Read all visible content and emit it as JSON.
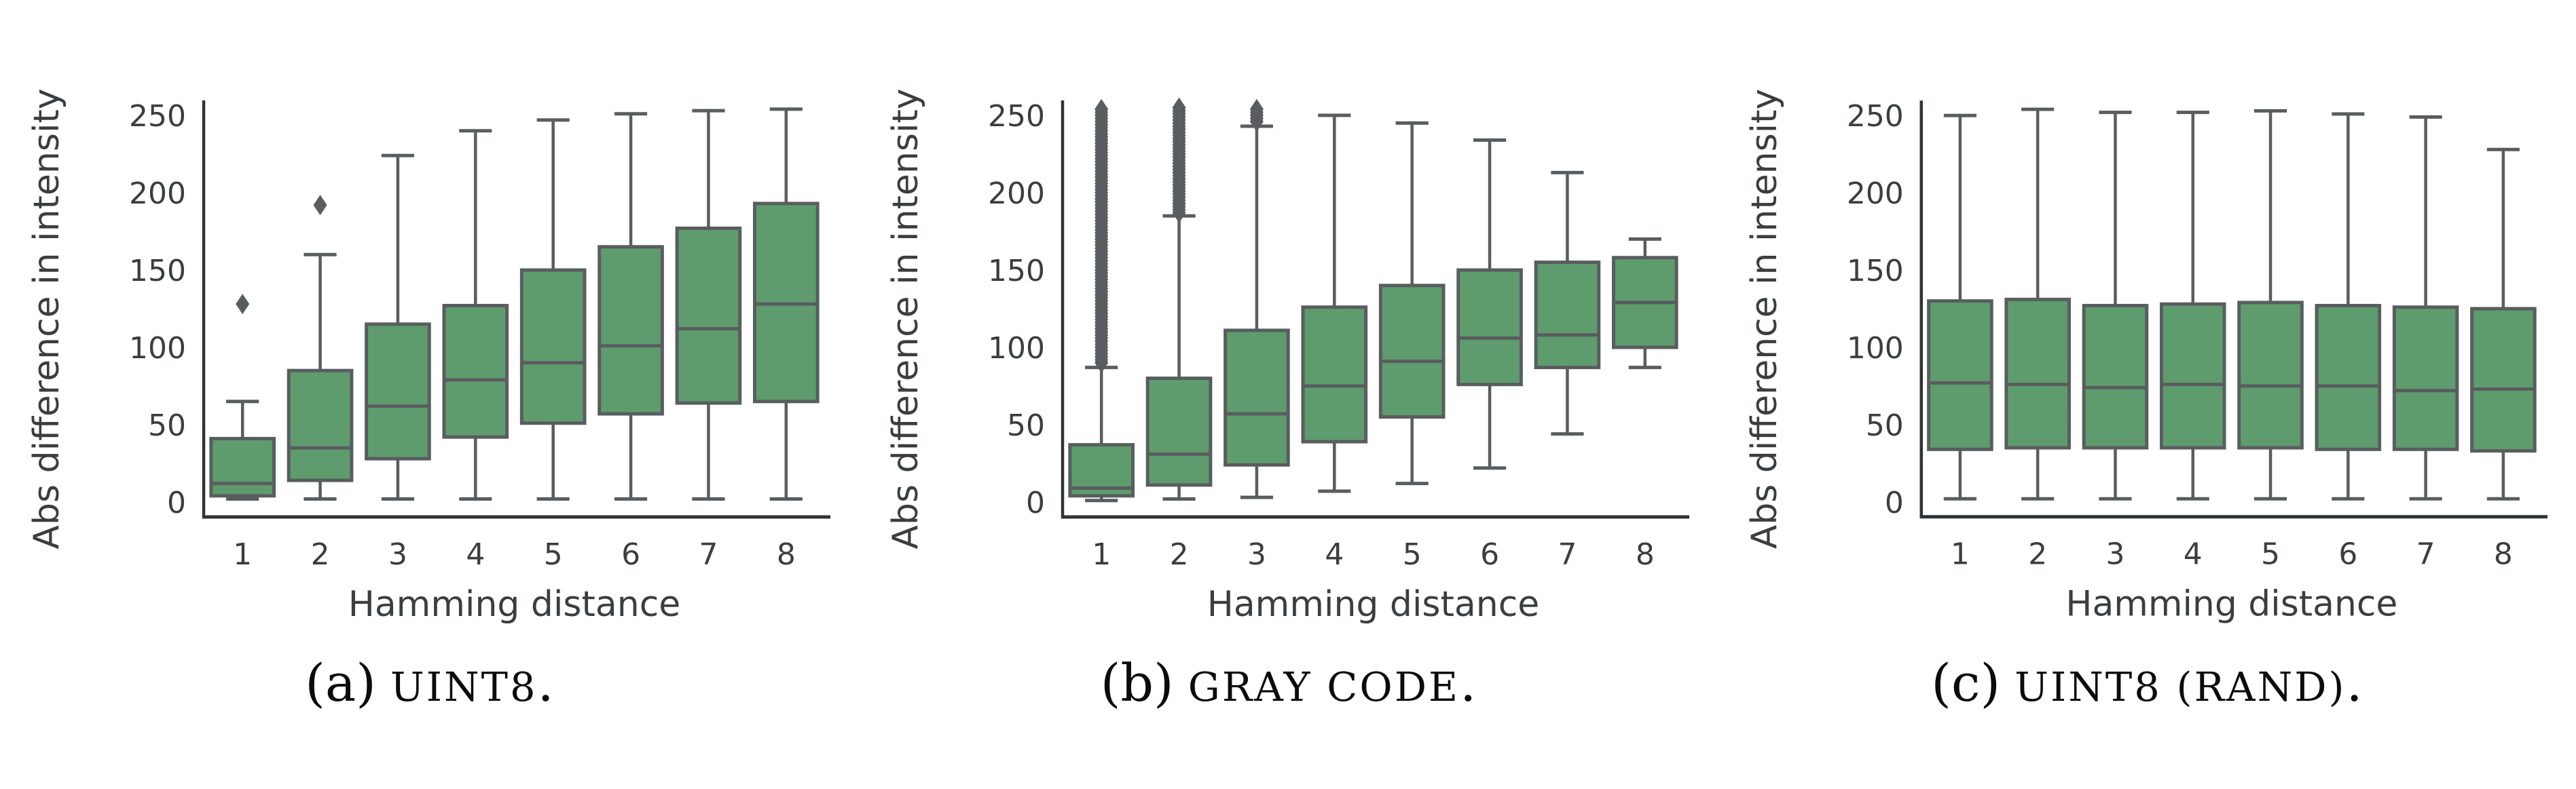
{
  "figure": {
    "background": "#ffffff",
    "box_fill": "#5e9c6e",
    "box_edge_color": "#595d5f",
    "spine_color": "#2f3335",
    "text_color": "#3a3e40",
    "caption_color": "#0b0b0b"
  },
  "chart_data": [
    {
      "id": "a",
      "type": "box",
      "caption": {
        "index": "(a)",
        "name": "UINT8",
        "suffix": "."
      },
      "xlabel": "Hamming distance",
      "ylabel": "Abs difference in intensity",
      "categories": [
        "1",
        "2",
        "3",
        "4",
        "5",
        "6",
        "7",
        "8"
      ],
      "yticks": [
        0,
        50,
        100,
        150,
        200,
        250
      ],
      "ylim": [
        0,
        260
      ],
      "grid": false,
      "legend": false,
      "boxes": [
        {
          "whislo": 2,
          "q1": 4,
          "med": 12,
          "q3": 41,
          "whishi": 65,
          "fliers": [
            128
          ]
        },
        {
          "whislo": 2,
          "q1": 14,
          "med": 35,
          "q3": 85,
          "whishi": 160,
          "fliers": [
            192
          ]
        },
        {
          "whislo": 2,
          "q1": 28,
          "med": 62,
          "q3": 115,
          "whishi": 224,
          "fliers": []
        },
        {
          "whislo": 2,
          "q1": 42,
          "med": 79,
          "q3": 127,
          "whishi": 240,
          "fliers": []
        },
        {
          "whislo": 2,
          "q1": 51,
          "med": 90,
          "q3": 150,
          "whishi": 247,
          "fliers": []
        },
        {
          "whislo": 2,
          "q1": 57,
          "med": 101,
          "q3": 165,
          "whishi": 251,
          "fliers": []
        },
        {
          "whislo": 2,
          "q1": 64,
          "med": 112,
          "q3": 177,
          "whishi": 253,
          "fliers": []
        },
        {
          "whislo": 2,
          "q1": 65,
          "med": 128,
          "q3": 193,
          "whishi": 254,
          "fliers": []
        }
      ]
    },
    {
      "id": "b",
      "type": "box",
      "caption": {
        "index": "(b)",
        "name": "GRAY CODE",
        "suffix": "."
      },
      "xlabel": "Hamming distance",
      "ylabel": "Abs difference in intensity",
      "categories": [
        "1",
        "2",
        "3",
        "4",
        "5",
        "6",
        "7",
        "8"
      ],
      "yticks": [
        0,
        50,
        100,
        150,
        200,
        250
      ],
      "ylim": [
        0,
        260
      ],
      "grid": false,
      "legend": false,
      "boxes": [
        {
          "whislo": 1,
          "q1": 4,
          "med": 9,
          "q3": 37,
          "whishi": 87,
          "fliers": [],
          "flier_range": [
            90,
            255
          ]
        },
        {
          "whislo": 2,
          "q1": 11,
          "med": 31,
          "q3": 80,
          "whishi": 185,
          "fliers": [],
          "flier_range": [
            187,
            255
          ]
        },
        {
          "whislo": 3,
          "q1": 24,
          "med": 57,
          "q3": 111,
          "whishi": 243,
          "fliers": [],
          "flier_range": [
            246,
            255
          ]
        },
        {
          "whislo": 7,
          "q1": 39,
          "med": 75,
          "q3": 126,
          "whishi": 250,
          "fliers": []
        },
        {
          "whislo": 12,
          "q1": 55,
          "med": 91,
          "q3": 140,
          "whishi": 245,
          "fliers": []
        },
        {
          "whislo": 22,
          "q1": 76,
          "med": 106,
          "q3": 150,
          "whishi": 234,
          "fliers": []
        },
        {
          "whislo": 44,
          "q1": 87,
          "med": 108,
          "q3": 155,
          "whishi": 213,
          "fliers": []
        },
        {
          "whislo": 87,
          "q1": 100,
          "med": 129,
          "q3": 158,
          "whishi": 170,
          "fliers": []
        }
      ]
    },
    {
      "id": "c",
      "type": "box",
      "caption": {
        "index": "(c)",
        "name": "UINT8 (RAND)",
        "suffix": "."
      },
      "xlabel": "Hamming distance",
      "ylabel": "Abs difference in intensity",
      "categories": [
        "1",
        "2",
        "3",
        "4",
        "5",
        "6",
        "7",
        "8"
      ],
      "yticks": [
        0,
        50,
        100,
        150,
        200,
        250
      ],
      "ylim": [
        0,
        260
      ],
      "grid": false,
      "legend": false,
      "boxes": [
        {
          "whislo": 2,
          "q1": 34,
          "med": 77,
          "q3": 130,
          "whishi": 250,
          "fliers": []
        },
        {
          "whislo": 2,
          "q1": 35,
          "med": 76,
          "q3": 131,
          "whishi": 254,
          "fliers": []
        },
        {
          "whislo": 2,
          "q1": 35,
          "med": 74,
          "q3": 127,
          "whishi": 252,
          "fliers": []
        },
        {
          "whislo": 2,
          "q1": 35,
          "med": 76,
          "q3": 128,
          "whishi": 252,
          "fliers": []
        },
        {
          "whislo": 2,
          "q1": 35,
          "med": 75,
          "q3": 129,
          "whishi": 253,
          "fliers": []
        },
        {
          "whislo": 2,
          "q1": 34,
          "med": 75,
          "q3": 127,
          "whishi": 251,
          "fliers": []
        },
        {
          "whislo": 2,
          "q1": 34,
          "med": 72,
          "q3": 126,
          "whishi": 249,
          "fliers": []
        },
        {
          "whislo": 2,
          "q1": 33,
          "med": 73,
          "q3": 125,
          "whishi": 228,
          "fliers": []
        }
      ]
    }
  ]
}
